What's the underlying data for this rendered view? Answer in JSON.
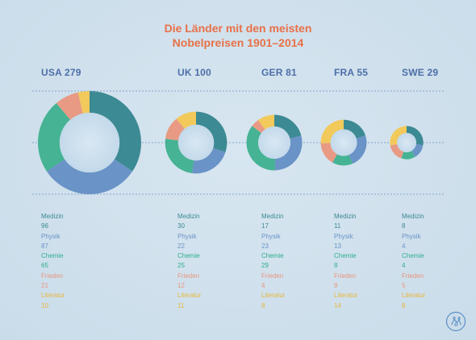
{
  "chart_data": {
    "type": "donut",
    "title_line1": "Die Länder mit den meisten",
    "title_line2": "Nobelpreisen 1901–2014",
    "categories": [
      "Medizin",
      "Physik",
      "Chemie",
      "Frieden",
      "Literatur"
    ],
    "colors": [
      "#3c8a93",
      "#6a93c7",
      "#46b394",
      "#e89a84",
      "#f2c95b"
    ],
    "countries": [
      {
        "label": "USA 279",
        "name": "USA",
        "total": 279,
        "values": [
          96,
          87,
          65,
          21,
          10
        ]
      },
      {
        "label": "UK 100",
        "name": "UK",
        "total": 100,
        "values": [
          30,
          22,
          25,
          12,
          11
        ]
      },
      {
        "label": "GER 81",
        "name": "GER",
        "total": 81,
        "values": [
          17,
          23,
          29,
          4,
          8
        ]
      },
      {
        "label": "FRA 55",
        "name": "FRA",
        "total": 55,
        "values": [
          11,
          13,
          8,
          9,
          14
        ]
      },
      {
        "label": "SWE 29",
        "name": "SWE",
        "total": 29,
        "values": [
          8,
          4,
          4,
          5,
          8
        ]
      }
    ]
  }
}
